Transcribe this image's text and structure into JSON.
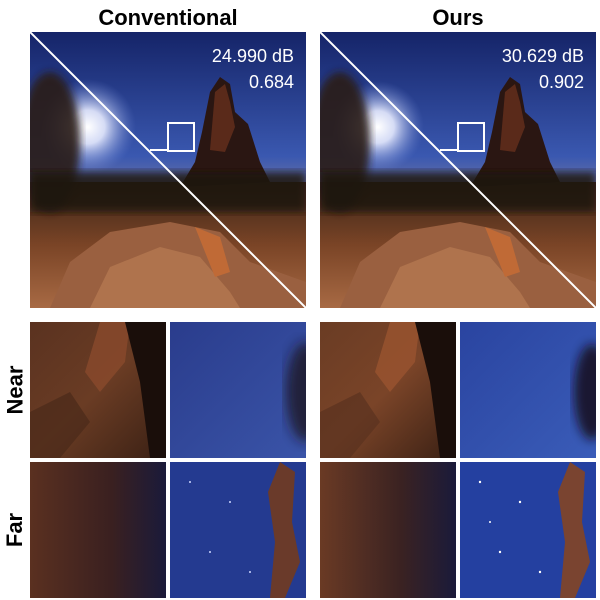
{
  "columns": {
    "conventional": {
      "title": "Conventional",
      "psnr": "24.990 dB",
      "ssim": "0.684"
    },
    "ours": {
      "title": "Ours",
      "psnr": "30.629 dB",
      "ssim": "0.902"
    }
  },
  "rows": {
    "near": "Near",
    "far": "Far"
  },
  "colors": {
    "sky_top": "#1a2c7a",
    "sky_mid": "#3c5cb8",
    "rock": "#8a4a2a",
    "ground_dark": "#2a1710",
    "divider": "#ffffff"
  }
}
